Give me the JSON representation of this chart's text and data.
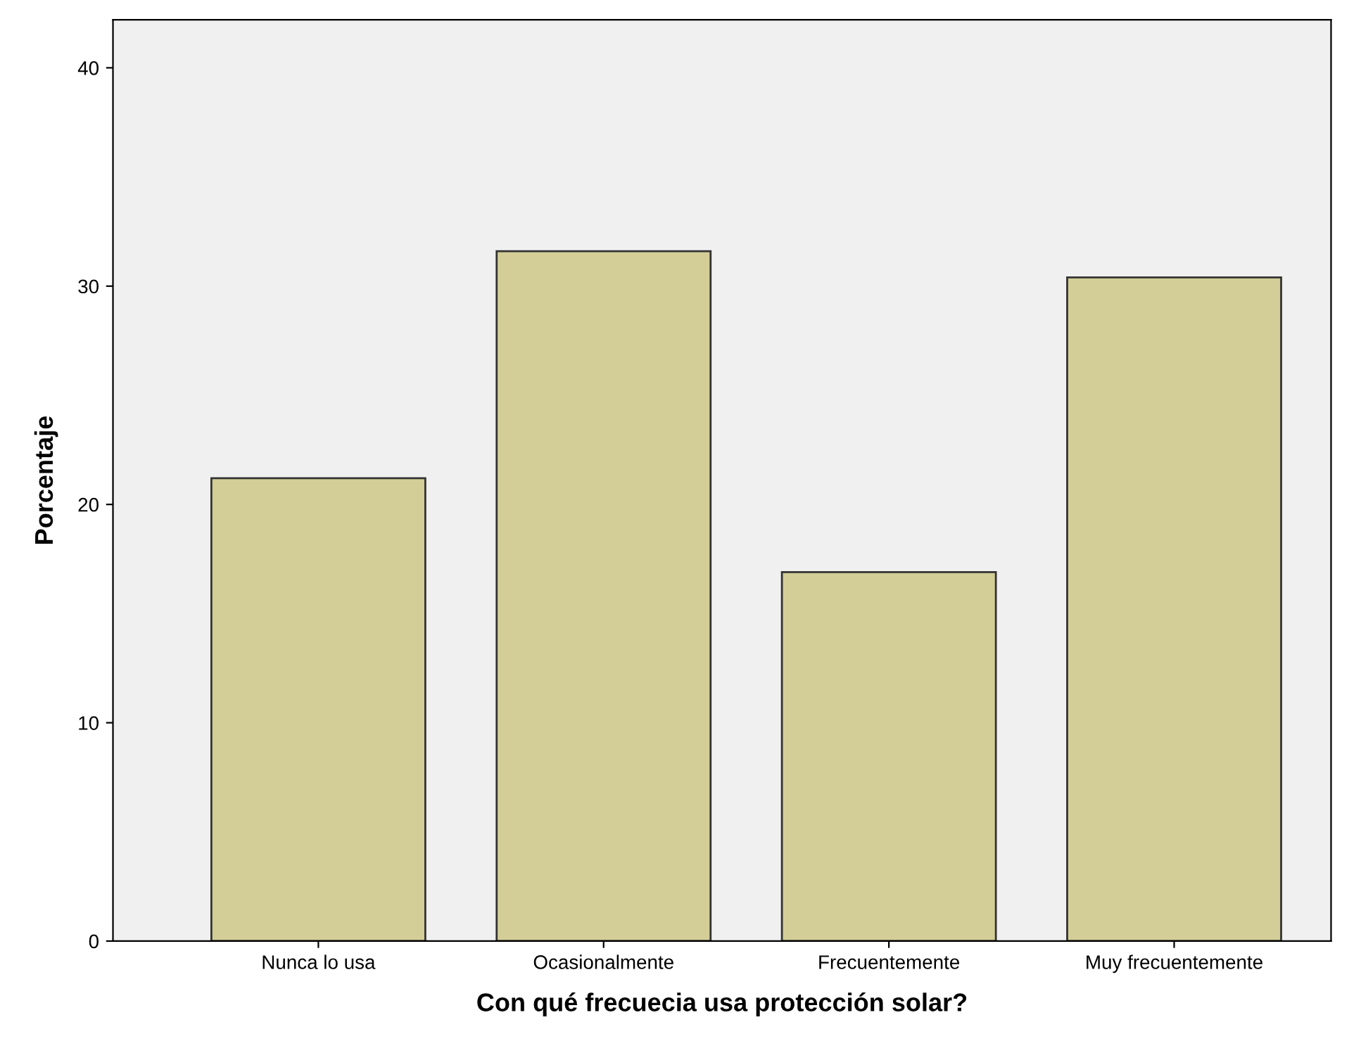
{
  "chart_data": {
    "type": "bar",
    "xlabel": "Con qué frecuecia usa protección solar?",
    "ylabel": "Porcentaje",
    "categories": [
      "Nunca lo usa",
      "Ocasionalmente",
      "Frecuentemente",
      "Muy frecuentemente"
    ],
    "values": [
      21.2,
      31.6,
      16.9,
      30.4
    ],
    "color": "#d3ce97",
    "ylim": [
      0,
      42.2
    ],
    "yticks": [
      0,
      10,
      20,
      30,
      40
    ],
    "grid": false,
    "legend": false
  }
}
